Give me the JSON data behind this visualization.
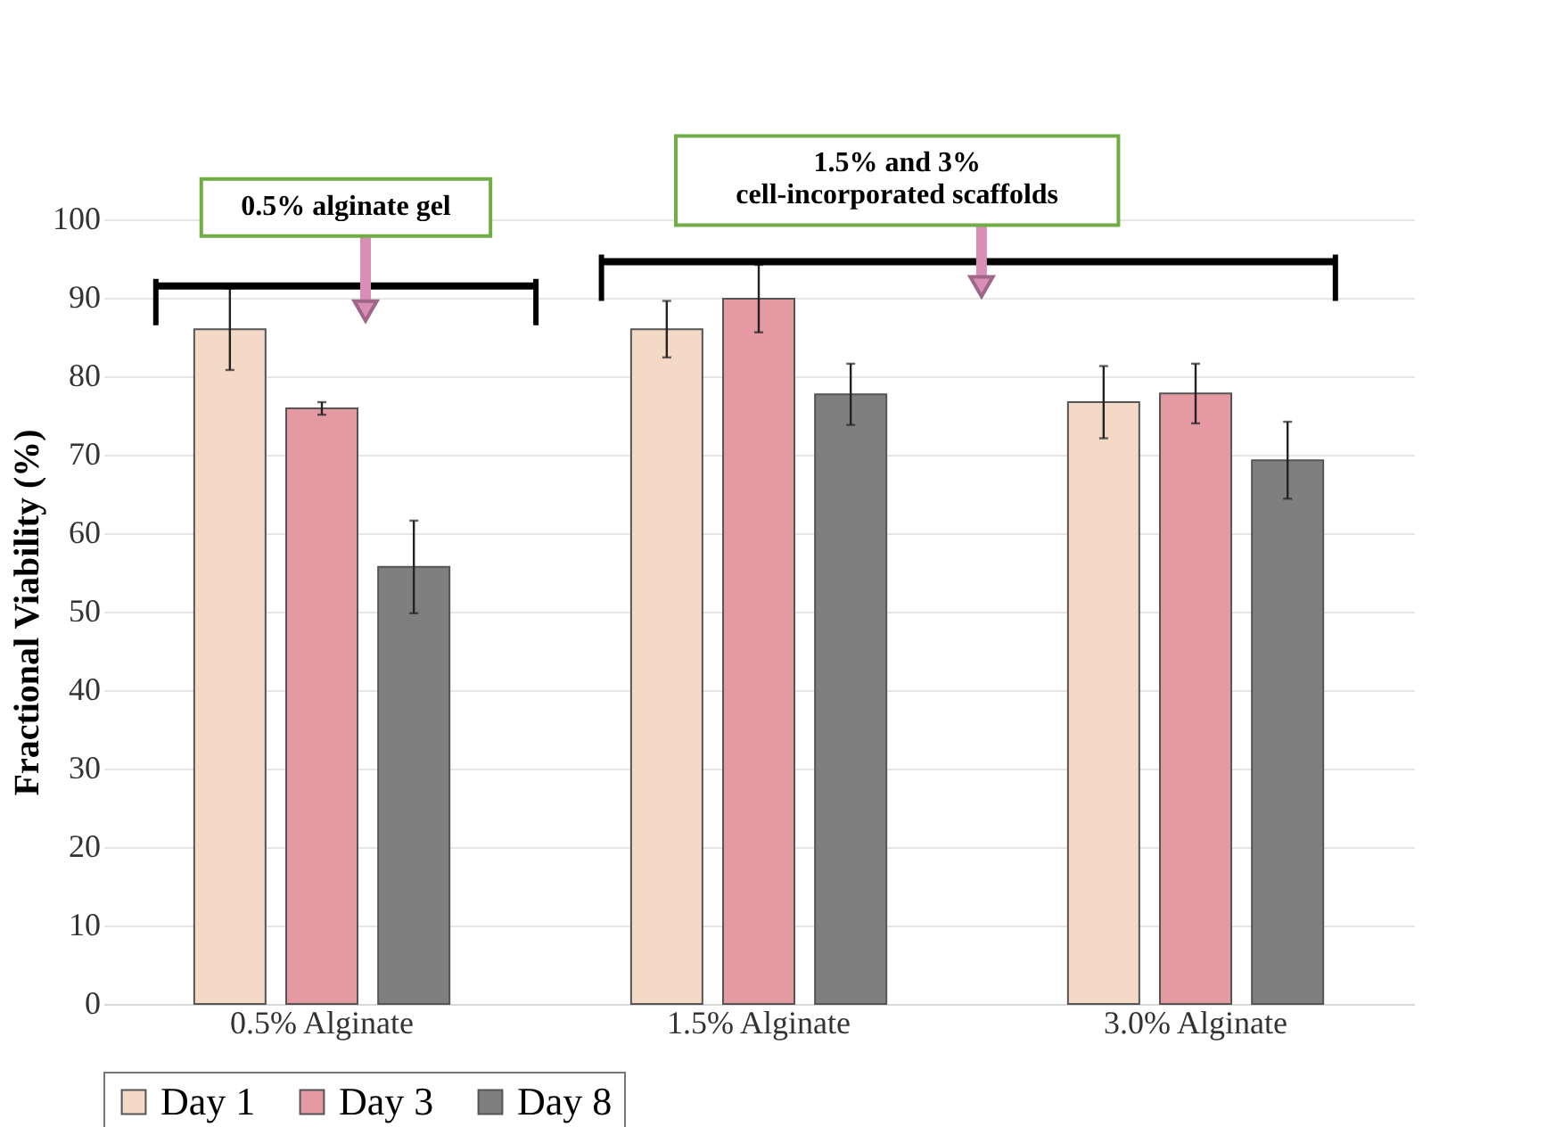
{
  "chart_data": {
    "type": "bar",
    "ylabel": "Fractional Viability (%)",
    "categories": [
      "0.5% Alginate",
      "1.5% Alginate",
      "3.0% Alginate"
    ],
    "series": [
      {
        "name": "Day 1",
        "color": "#f3d9c6",
        "values": [
          86,
          86,
          76.7
        ],
        "errors": [
          5.2,
          3.6,
          4.6
        ]
      },
      {
        "name": "Day 3",
        "color": "#e59aa3",
        "values": [
          75.9,
          89.9,
          77.8
        ],
        "errors": [
          0.8,
          4.3,
          3.8
        ]
      },
      {
        "name": "Day 8",
        "color": "#7f7f7f",
        "values": [
          55.7,
          77.7,
          69.3
        ],
        "errors": [
          5.9,
          3.9,
          4.9
        ]
      }
    ],
    "ylim": [
      0,
      100
    ],
    "yticks": [
      0,
      10,
      20,
      30,
      40,
      50,
      60,
      70,
      80,
      90,
      100
    ],
    "grid": "y",
    "legend": "bottom",
    "annotations": [
      "0.5% alginate gel",
      "1.5% and 3%\ncell-incorporated scaffolds"
    ]
  }
}
